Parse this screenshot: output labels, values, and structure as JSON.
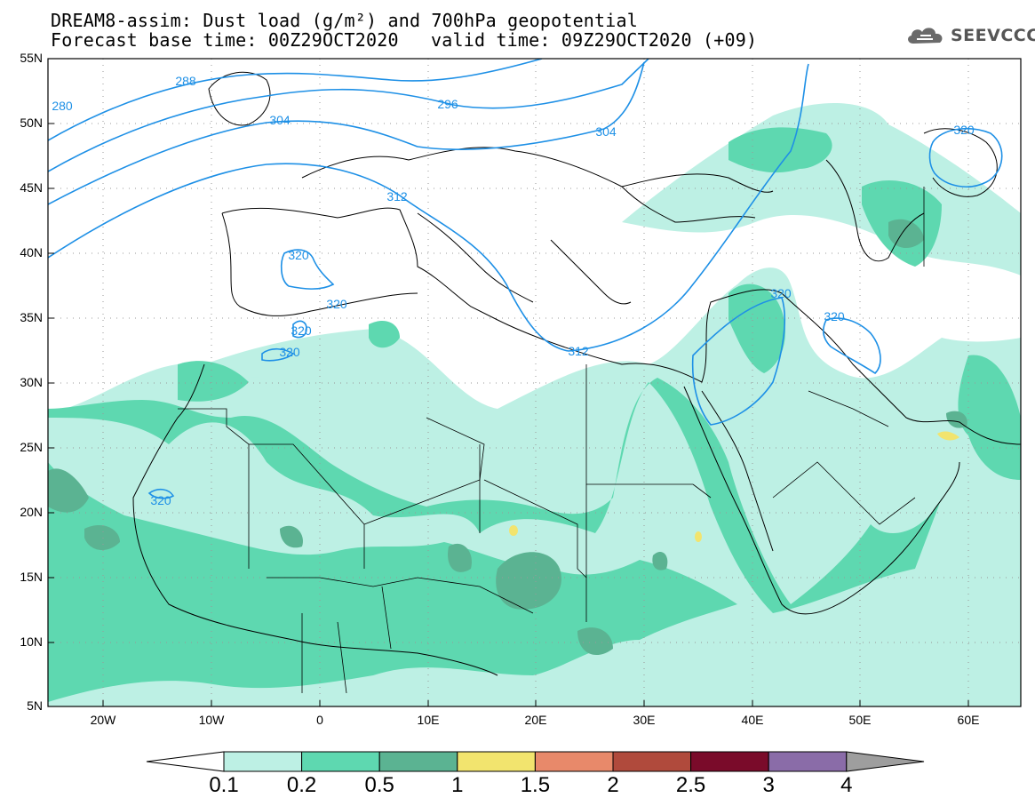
{
  "header": {
    "line1": "DREAM8-assim: Dust load (g/m²) and 700hPa geopotential",
    "line2_left": "Forecast base time: 00Z29OCT2020",
    "line2_right": "valid time: 09Z29OCT2020 (+09)"
  },
  "logo": {
    "text": "SEEVCCC",
    "icon": "cloud-icon"
  },
  "map": {
    "lat_labels": [
      "55N",
      "50N",
      "45N",
      "40N",
      "35N",
      "30N",
      "25N",
      "20N",
      "15N",
      "10N",
      "5N"
    ],
    "lon_labels": [
      "20W",
      "10W",
      "0",
      "10E",
      "20E",
      "30E",
      "40E",
      "50E",
      "60E"
    ],
    "contour_color": "#1e90e6",
    "contour_labels": [
      "280",
      "288",
      "296",
      "304",
      "304",
      "312",
      "312",
      "320",
      "320",
      "320",
      "320",
      "320",
      "320",
      "320",
      "320"
    ]
  },
  "colorbar": {
    "labels": [
      "0.1",
      "0.2",
      "0.5",
      "1",
      "1.5",
      "2",
      "2.5",
      "3",
      "4"
    ],
    "colors": [
      "#ffffff",
      "#bdf0e4",
      "#5ed8b0",
      "#5bb392",
      "#f2e46e",
      "#e8896a",
      "#b04a3c",
      "#7a0b2a",
      "#8a6ca8",
      "#9e9e9e"
    ]
  }
}
